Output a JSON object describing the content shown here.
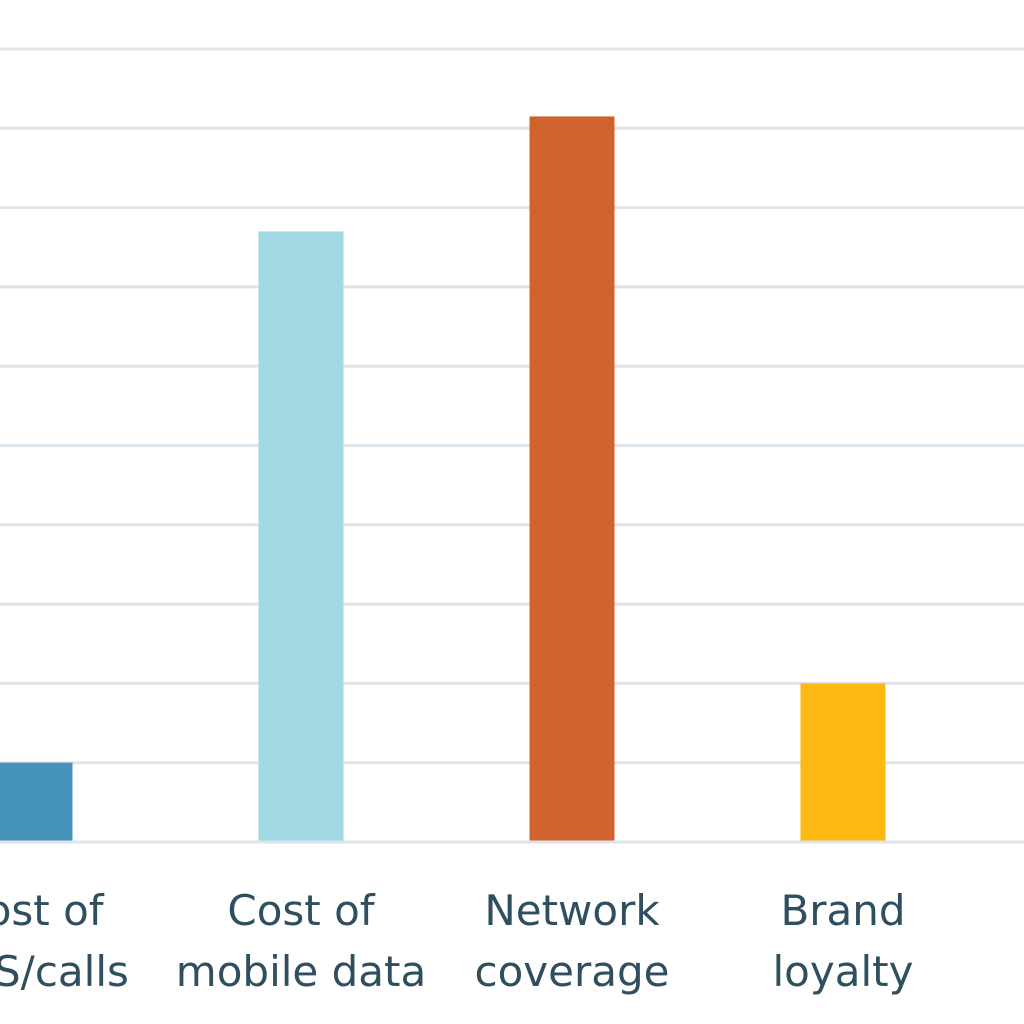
{
  "chart_data": {
    "type": "bar",
    "categories": [
      [
        "Cost of",
        "SMS/calls"
      ],
      [
        "Cost of",
        "mobile data"
      ],
      [
        "Network",
        "coverage"
      ],
      [
        "Brand",
        "loyalty"
      ]
    ],
    "values": [
      1,
      7.7,
      9.15,
      2
    ],
    "ylim": [
      0,
      10
    ],
    "grid": true,
    "colors": [
      "#4693b9",
      "#a2d8e4",
      "#d0632d",
      "#fdb813"
    ],
    "title": "",
    "xlabel": "",
    "ylabel": ""
  }
}
